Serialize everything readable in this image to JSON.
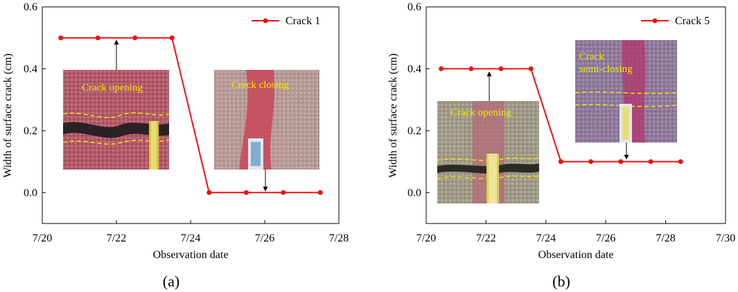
{
  "chart_data": [
    {
      "type": "line",
      "panel_label": "(a)",
      "xlabel": "Observation date",
      "ylabel": "Width of surface crack (cm)",
      "x_ticks": [
        "7/20",
        "7/22",
        "7/24",
        "7/26",
        "7/28"
      ],
      "y_ticks": [
        "0.0",
        "0.2",
        "0.4",
        "0.6"
      ],
      "xlim": [
        0,
        8
      ],
      "ylim": [
        -0.1,
        0.6
      ],
      "legend_position": "top-right",
      "series": [
        {
          "name": "Crack 1",
          "color": "#ee1111",
          "x": [
            0.5,
            1.5,
            2.5,
            3.5,
            4.5,
            5.5,
            6.5,
            7.5
          ],
          "y": [
            0.5,
            0.5,
            0.5,
            0.5,
            0.0,
            0.0,
            0.0,
            0.0
          ]
        }
      ],
      "annotations": [
        {
          "label": "Crack opening",
          "image": "crack-opening-photo"
        },
        {
          "label": "Crack closing",
          "image": "crack-closing-photo"
        }
      ]
    },
    {
      "type": "line",
      "panel_label": "(b)",
      "xlabel": "Observation date",
      "ylabel": "Width of surface crack (cm)",
      "x_ticks": [
        "7/20",
        "7/22",
        "7/24",
        "7/26",
        "7/28",
        "7/30"
      ],
      "y_ticks": [
        "0.0",
        "0.2",
        "0.4",
        "0.6"
      ],
      "xlim": [
        0,
        10
      ],
      "ylim": [
        -0.1,
        0.6
      ],
      "legend_position": "top-right",
      "series": [
        {
          "name": "Crack 5",
          "color": "#ee1111",
          "x": [
            0.5,
            1.5,
            2.5,
            3.5,
            4.5,
            5.5,
            6.5,
            7.5,
            8.5
          ],
          "y": [
            0.4,
            0.4,
            0.4,
            0.4,
            0.1,
            0.1,
            0.1,
            0.1,
            0.1
          ]
        }
      ],
      "annotations": [
        {
          "label": "Crack opening",
          "image": "crack-opening-photo"
        },
        {
          "label": "Crack\nsemi-closing",
          "image": "crack-semi-closing-photo"
        }
      ]
    }
  ]
}
